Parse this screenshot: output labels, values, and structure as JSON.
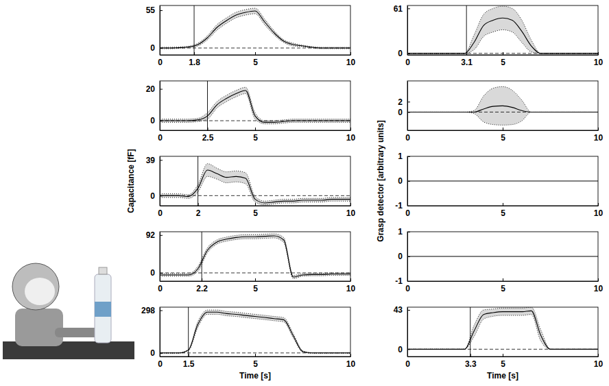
{
  "chart_data": [
    {
      "type": "line",
      "x": [
        0,
        0.5,
        1,
        1.5,
        2,
        2.5,
        3,
        3.5,
        4,
        4.5,
        5,
        5.5,
        6,
        6.5,
        7,
        7.5,
        8,
        8.5,
        9,
        9.5,
        10
      ],
      "xlim": [
        0,
        10
      ],
      "xticks": [
        0,
        1.8,
        5,
        10
      ],
      "event_time": 1.8,
      "ylim": [
        -10,
        62
      ],
      "yticks": [
        0,
        55
      ],
      "series": [
        {
          "color": "#000000",
          "line_style": "solid",
          "values": [
            0,
            0,
            0.5,
            1.5,
            5,
            15,
            30,
            40,
            48,
            52,
            54,
            38,
            22,
            10,
            5,
            3,
            1,
            0,
            0,
            0,
            0
          ],
          "std": [
            1,
            1,
            1,
            1,
            2,
            3,
            4,
            4,
            4,
            4,
            4,
            4,
            3,
            2,
            2,
            1,
            1,
            1,
            1,
            1,
            1
          ]
        },
        {
          "color": "#000000",
          "line_style": "dashed",
          "values": [
            0,
            0,
            0,
            0,
            0,
            0,
            0,
            0,
            0,
            0,
            0,
            0,
            0,
            0,
            0,
            0,
            0,
            0,
            0,
            0,
            0
          ]
        }
      ]
    },
    {
      "type": "line",
      "x": [
        0,
        0.5,
        1,
        1.5,
        2,
        2.5,
        3,
        3.5,
        4,
        4.5,
        5,
        5.5,
        6,
        6.5,
        7,
        7.5,
        8,
        8.5,
        9,
        9.5,
        10
      ],
      "xlim": [
        0,
        10
      ],
      "xticks": [
        0,
        2.5,
        5,
        10
      ],
      "event_time": 2.5,
      "ylim": [
        -6,
        25
      ],
      "yticks": [
        0,
        20
      ],
      "series": [
        {
          "color": "#000000",
          "line_style": "solid",
          "values": [
            0,
            0,
            0,
            0,
            0.5,
            3,
            10,
            14,
            17,
            19,
            3,
            -1,
            -1,
            -0.5,
            0,
            0,
            0,
            0,
            0,
            0,
            0
          ],
          "std": [
            1,
            1,
            1,
            1,
            1,
            2,
            2,
            2,
            2,
            2,
            2,
            1,
            1,
            1,
            1,
            1,
            1,
            1,
            1,
            1,
            1
          ]
        },
        {
          "color": "#000000",
          "line_style": "dashed",
          "values": [
            0,
            0,
            0,
            0,
            0,
            0,
            0,
            0,
            0,
            0,
            0,
            0,
            0,
            0,
            0,
            0,
            0,
            0,
            0,
            0,
            0
          ]
        }
      ]
    },
    {
      "type": "line",
      "x": [
        0,
        0.5,
        1,
        1.5,
        2,
        2.5,
        3,
        3.5,
        4,
        4.5,
        5,
        5.5,
        6,
        6.5,
        7,
        7.5,
        8,
        8.5,
        9,
        9.5,
        10
      ],
      "xlim": [
        0,
        10
      ],
      "xticks": [
        0,
        2,
        5,
        10
      ],
      "event_time": 2,
      "ylim": [
        -11,
        43
      ],
      "yticks": [
        0,
        39
      ],
      "ylabel": "Capacitance [fF]",
      "series": [
        {
          "color": "#000000",
          "line_style": "solid",
          "values": [
            0,
            0,
            0,
            -1,
            8,
            28,
            24,
            20,
            21,
            19,
            -4,
            -8,
            -7,
            -6,
            -6,
            -5,
            -5,
            -5,
            -4,
            -4,
            -4
          ],
          "std": [
            2,
            2,
            2,
            2,
            4,
            7,
            6,
            6,
            6,
            6,
            3,
            2,
            2,
            2,
            2,
            2,
            2,
            2,
            2,
            2,
            2
          ]
        },
        {
          "color": "#000000",
          "line_style": "dashed",
          "values": [
            0,
            0,
            0,
            0,
            0,
            0,
            0,
            0,
            0,
            0,
            0,
            0,
            0,
            0,
            0,
            0,
            0,
            0,
            0,
            0,
            0
          ]
        }
      ]
    },
    {
      "type": "line",
      "x": [
        0,
        0.5,
        1,
        1.5,
        2,
        2.5,
        3,
        3.5,
        4,
        4.5,
        5,
        5.5,
        6,
        6.5,
        7,
        7.5,
        8,
        8.5,
        9,
        9.5,
        10
      ],
      "xlim": [
        0,
        10
      ],
      "xticks": [
        0,
        2.2,
        5,
        10
      ],
      "event_time": 2.2,
      "ylim": [
        -20,
        100
      ],
      "yticks": [
        0,
        92
      ],
      "series": [
        {
          "color": "#000000",
          "line_style": "solid",
          "values": [
            -5,
            -5,
            -5,
            -5,
            10,
            55,
            75,
            82,
            86,
            88,
            88,
            89,
            90,
            80,
            -10,
            -5,
            -4,
            -4,
            -3,
            -3,
            -3
          ],
          "std": [
            3,
            3,
            3,
            3,
            6,
            6,
            5,
            5,
            5,
            5,
            5,
            5,
            5,
            6,
            4,
            3,
            3,
            3,
            3,
            3,
            3
          ]
        },
        {
          "color": "#000000",
          "line_style": "dashed",
          "values": [
            0,
            0,
            0,
            0,
            0,
            0,
            0,
            0,
            0,
            0,
            0,
            0,
            0,
            0,
            0,
            0,
            0,
            0,
            0,
            0,
            0
          ]
        }
      ]
    },
    {
      "type": "line",
      "x": [
        0,
        0.5,
        1,
        1.5,
        2,
        2.5,
        3,
        3.5,
        4,
        4.5,
        5,
        5.5,
        6,
        6.5,
        7,
        7.5,
        8,
        8.5,
        9,
        9.5,
        10
      ],
      "xlim": [
        0,
        10
      ],
      "xticks": [
        0,
        1.5,
        5,
        10
      ],
      "event_time": 1.5,
      "ylim": [
        -25,
        320
      ],
      "yticks": [
        0,
        298
      ],
      "xlabel": "Time [s]",
      "series": [
        {
          "color": "#000000",
          "line_style": "solid",
          "values": [
            0,
            0,
            0,
            20,
            200,
            285,
            285,
            275,
            270,
            262,
            255,
            248,
            240,
            232,
            120,
            10,
            0,
            0,
            0,
            0,
            0
          ],
          "std": [
            2,
            2,
            2,
            5,
            20,
            15,
            15,
            15,
            15,
            15,
            15,
            15,
            15,
            15,
            15,
            5,
            2,
            2,
            2,
            2,
            2
          ]
        },
        {
          "color": "#000000",
          "line_style": "dashed",
          "values": [
            0,
            0,
            0,
            0,
            0,
            0,
            0,
            0,
            0,
            0,
            0,
            0,
            0,
            0,
            0,
            0,
            0,
            0,
            0,
            0,
            0
          ]
        }
      ]
    },
    {
      "type": "line",
      "x": [
        0,
        0.5,
        1,
        1.5,
        2,
        2.5,
        3,
        3.5,
        4,
        4.5,
        5,
        5.5,
        6,
        6.5,
        7,
        7.5,
        8,
        8.5,
        9,
        9.5,
        10
      ],
      "xlim": [
        0,
        10
      ],
      "xticks": [
        0,
        3.1,
        5,
        10
      ],
      "event_time": 3.1,
      "ylim": [
        -2,
        65
      ],
      "yticks": [
        0,
        61
      ],
      "series": [
        {
          "color": "#000000",
          "line_style": "solid",
          "values": [
            0,
            0,
            0,
            0,
            0,
            0,
            0,
            15,
            38,
            45,
            48,
            45,
            30,
            10,
            0,
            0,
            0,
            0,
            0,
            0,
            0
          ],
          "std": [
            0,
            0,
            0,
            0,
            0,
            0,
            0,
            10,
            15,
            16,
            16,
            16,
            15,
            8,
            0,
            0,
            0,
            0,
            0,
            0,
            0
          ]
        },
        {
          "color": "#000000",
          "line_style": "dashed",
          "values": [
            0,
            0,
            0,
            0,
            0,
            0,
            0,
            0,
            0,
            0,
            0,
            0,
            0,
            0,
            0,
            0,
            0,
            0,
            0,
            0,
            0
          ]
        }
      ]
    },
    {
      "type": "line",
      "x": [
        0,
        0.5,
        1,
        1.5,
        2,
        2.5,
        3,
        3.5,
        4,
        4.5,
        5,
        5.5,
        6,
        6.5,
        7,
        7.5,
        8,
        8.5,
        9,
        9.5,
        10
      ],
      "xlim": [
        0,
        10
      ],
      "xticks": [
        0,
        5,
        10
      ],
      "ylim": [
        -3.5,
        6
      ],
      "yticks": [
        0,
        2
      ],
      "series": [
        {
          "color": "#000000",
          "line_style": "solid",
          "values": [
            0,
            0,
            0,
            0,
            0,
            0,
            0,
            0,
            0.6,
            1.1,
            1.2,
            0.9,
            0.3,
            0,
            0,
            0,
            0,
            0,
            0,
            0,
            0
          ],
          "std": [
            0,
            0,
            0,
            0,
            0,
            0,
            0,
            0.3,
            2.5,
            3.5,
            3.7,
            3.3,
            2,
            0,
            0,
            0,
            0,
            0,
            0,
            0,
            0
          ]
        },
        {
          "color": "#000000",
          "line_style": "dashed",
          "values": [
            0,
            0,
            0,
            0,
            0,
            0,
            0,
            0,
            0,
            0,
            0,
            0,
            0,
            0,
            0,
            0,
            0,
            0,
            0,
            0,
            0
          ]
        }
      ]
    },
    {
      "type": "line",
      "x": [
        0,
        0.5,
        1,
        1.5,
        2,
        2.5,
        3,
        3.5,
        4,
        4.5,
        5,
        5.5,
        6,
        6.5,
        7,
        7.5,
        8,
        8.5,
        9,
        9.5,
        10
      ],
      "xlim": [
        0,
        10
      ],
      "xticks": [
        0,
        5,
        10
      ],
      "ylim": [
        -1,
        1
      ],
      "yticks": [
        -1,
        0,
        1
      ],
      "ylabel": "Grasp detector [arbitrary units]",
      "series": [
        {
          "color": "#000000",
          "line_style": "solid",
          "values": [
            0,
            0,
            0,
            0,
            0,
            0,
            0,
            0,
            0,
            0,
            0,
            0,
            0,
            0,
            0,
            0,
            0,
            0,
            0,
            0,
            0
          ]
        }
      ]
    },
    {
      "type": "line",
      "x": [
        0,
        0.5,
        1,
        1.5,
        2,
        2.5,
        3,
        3.5,
        4,
        4.5,
        5,
        5.5,
        6,
        6.5,
        7,
        7.5,
        8,
        8.5,
        9,
        9.5,
        10
      ],
      "xlim": [
        0,
        10
      ],
      "xticks": [
        0,
        5,
        10
      ],
      "ylim": [
        -1,
        1
      ],
      "yticks": [
        -1,
        0,
        1
      ],
      "series": [
        {
          "color": "#000000",
          "line_style": "solid",
          "values": [
            0,
            0,
            0,
            0,
            0,
            0,
            0,
            0,
            0,
            0,
            0,
            0,
            0,
            0,
            0,
            0,
            0,
            0,
            0,
            0,
            0
          ]
        }
      ]
    },
    {
      "type": "line",
      "x": [
        0,
        0.5,
        1,
        1.5,
        2,
        2.5,
        3,
        3.5,
        4,
        4.5,
        5,
        5.5,
        6,
        6.5,
        7,
        7.5,
        8,
        8.5,
        9,
        9.5,
        10
      ],
      "xlim": [
        0,
        10
      ],
      "xticks": [
        0,
        3.3,
        5,
        10
      ],
      "event_time": 3.3,
      "ylim": [
        -8,
        46
      ],
      "yticks": [
        0,
        43
      ],
      "xlabel": "Time [s]",
      "series": [
        {
          "color": "#000000",
          "line_style": "solid",
          "values": [
            0,
            0,
            0,
            0,
            0,
            0,
            0,
            20,
            38,
            40,
            41,
            41,
            41,
            42,
            15,
            0,
            0,
            0,
            0,
            0,
            0
          ],
          "std": [
            0,
            0,
            0,
            0,
            0,
            0,
            0,
            6,
            5,
            4,
            4,
            4,
            4,
            4,
            6,
            0,
            0,
            0,
            0,
            0,
            0
          ]
        },
        {
          "color": "#000000",
          "line_style": "dashed",
          "values": [
            0,
            0,
            0,
            0,
            0,
            0,
            0,
            0,
            0,
            0,
            0,
            0,
            0,
            0,
            0,
            0,
            0,
            0,
            0,
            0,
            0
          ]
        }
      ]
    }
  ]
}
